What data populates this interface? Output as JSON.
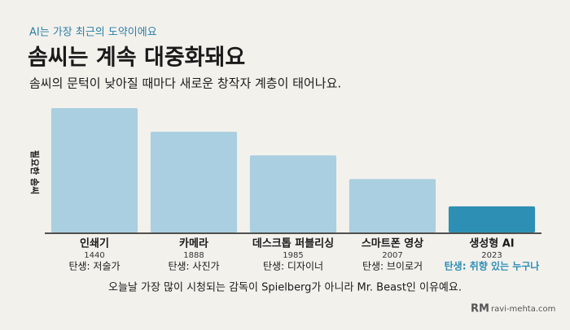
{
  "chart_data": {
    "type": "bar",
    "kicker": "AI는 가장 최근의 도약이에요",
    "title": "솜씨는 계속 대중화돼요",
    "subtitle": "솜씨의 문턱이 낮아질 때마다 새로운 창작자 계층이 태어나요.",
    "y_label": "필요한 솜씨",
    "categories": [
      "인쇄기",
      "카메라",
      "데스크톱 퍼블리싱",
      "스마트폰 영상",
      "생성형 AI"
    ],
    "years": [
      "1440",
      "1888",
      "1985",
      "2007",
      "2023"
    ],
    "roles": [
      "탄생: 저술가",
      "탄생: 사진가",
      "탄생: 디자이너",
      "탄생: 브이로거",
      "탄생: 취향 있는 누구나"
    ],
    "values": [
      100,
      81,
      62,
      43,
      21
    ],
    "colors": [
      "#a9cfe0",
      "#a9cfe0",
      "#a9cfe0",
      "#a9cfe0",
      "#2e8fb5"
    ],
    "highlight": 4,
    "ylim": [
      0,
      100
    ],
    "note": "오늘날 가장 많이 시청되는 감독이 Spielberg가 아니라 Mr. Beast인 이유예요.",
    "logo": "RM",
    "source": "ravi-mehta.com"
  }
}
